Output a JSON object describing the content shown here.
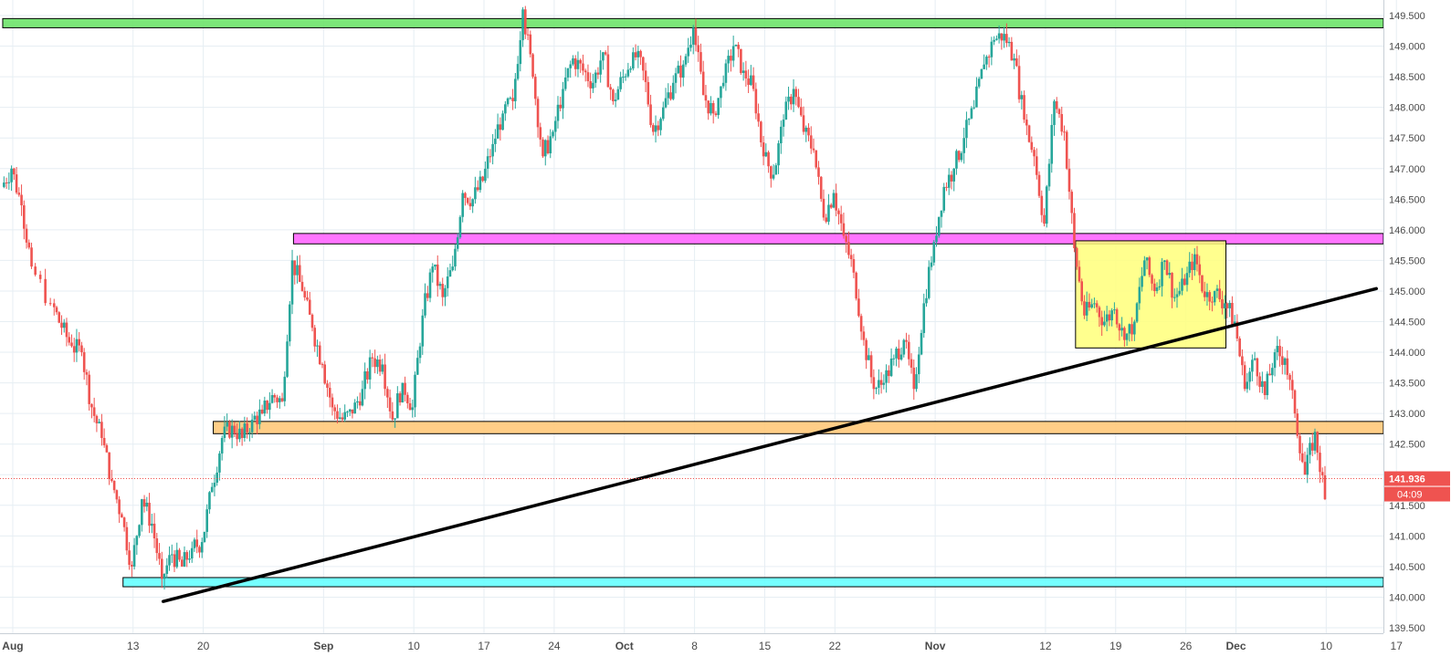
{
  "chart_data": {
    "type": "candlestick",
    "title": "",
    "xlabel": "",
    "ylabel": "",
    "ylim": [
      139.25,
      149.65
    ],
    "y_ticks": [
      "139.500",
      "140.000",
      "140.500",
      "141.000",
      "141.500",
      "142.000",
      "142.500",
      "143.000",
      "143.500",
      "144.000",
      "144.500",
      "145.000",
      "145.500",
      "146.000",
      "146.500",
      "147.000",
      "147.500",
      "148.000",
      "148.500",
      "149.000",
      "149.500"
    ],
    "x_ticks": [
      {
        "date": "2018-08-01",
        "label": "Aug"
      },
      {
        "date": "2018-08-13",
        "label": "13"
      },
      {
        "date": "2018-08-20",
        "label": "20"
      },
      {
        "date": "2018-09-01",
        "label": "Sep"
      },
      {
        "date": "2018-09-10",
        "label": "10"
      },
      {
        "date": "2018-09-17",
        "label": "17"
      },
      {
        "date": "2018-09-24",
        "label": "24"
      },
      {
        "date": "2018-10-01",
        "label": "Oct"
      },
      {
        "date": "2018-10-08",
        "label": "8"
      },
      {
        "date": "2018-10-15",
        "label": "15"
      },
      {
        "date": "2018-10-22",
        "label": "22"
      },
      {
        "date": "2018-11-01",
        "label": "Nov"
      },
      {
        "date": "2018-11-12",
        "label": "12"
      },
      {
        "date": "2018-11-19",
        "label": "19"
      },
      {
        "date": "2018-11-26",
        "label": "26"
      },
      {
        "date": "2018-12-01",
        "label": "Dec"
      },
      {
        "date": "2018-12-10",
        "label": "10"
      },
      {
        "date": "2018-12-17",
        "label": "17"
      }
    ],
    "price_path": [
      [
        "2018-07-31",
        146.7
      ],
      [
        "2018-08-01",
        147.0
      ],
      [
        "2018-08-02",
        146.4
      ],
      [
        "2018-08-03",
        145.4
      ],
      [
        "2018-08-05",
        144.8
      ],
      [
        "2018-08-06",
        144.4
      ],
      [
        "2018-08-07",
        144.1
      ],
      [
        "2018-08-08",
        144.0
      ],
      [
        "2018-08-09",
        143.1
      ],
      [
        "2018-08-10",
        142.6
      ],
      [
        "2018-08-11",
        141.9
      ],
      [
        "2018-08-12",
        141.3
      ],
      [
        "2018-08-13",
        140.5
      ],
      [
        "2018-08-14",
        141.6
      ],
      [
        "2018-08-15",
        141.2
      ],
      [
        "2018-08-16",
        140.3
      ],
      [
        "2018-08-17",
        140.7
      ],
      [
        "2018-08-18",
        140.5
      ],
      [
        "2018-08-19",
        140.8
      ],
      [
        "2018-08-20",
        140.9
      ],
      [
        "2018-08-21",
        141.8
      ],
      [
        "2018-08-22",
        142.6
      ],
      [
        "2018-08-23",
        142.8
      ],
      [
        "2018-08-24",
        142.6
      ],
      [
        "2018-08-25",
        142.9
      ],
      [
        "2018-08-26",
        143.0
      ],
      [
        "2018-08-27",
        143.3
      ],
      [
        "2018-08-28",
        143.2
      ],
      [
        "2018-08-29",
        145.5
      ],
      [
        "2018-08-30",
        145.0
      ],
      [
        "2018-08-31",
        144.4
      ],
      [
        "2018-09-01",
        143.8
      ],
      [
        "2018-09-02",
        143.1
      ],
      [
        "2018-09-03",
        142.9
      ],
      [
        "2018-09-04",
        143.0
      ],
      [
        "2018-09-05",
        143.4
      ],
      [
        "2018-09-06",
        143.9
      ],
      [
        "2018-09-07",
        143.8
      ],
      [
        "2018-09-08",
        142.9
      ],
      [
        "2018-09-09",
        143.5
      ],
      [
        "2018-09-10",
        143.1
      ],
      [
        "2018-09-11",
        144.6
      ],
      [
        "2018-09-12",
        145.4
      ],
      [
        "2018-09-13",
        144.9
      ],
      [
        "2018-09-14",
        145.4
      ],
      [
        "2018-09-15",
        146.6
      ],
      [
        "2018-09-16",
        146.5
      ],
      [
        "2018-09-17",
        146.8
      ],
      [
        "2018-09-18",
        147.4
      ],
      [
        "2018-09-19",
        147.9
      ],
      [
        "2018-09-20",
        148.1
      ],
      [
        "2018-09-21",
        149.6
      ],
      [
        "2018-09-22",
        148.5
      ],
      [
        "2018-09-23",
        147.2
      ],
      [
        "2018-09-24",
        147.6
      ],
      [
        "2018-09-25",
        148.3
      ],
      [
        "2018-09-26",
        148.8
      ],
      [
        "2018-09-27",
        148.6
      ],
      [
        "2018-09-28",
        148.4
      ],
      [
        "2018-09-29",
        148.9
      ],
      [
        "2018-09-30",
        148.1
      ],
      [
        "2018-10-01",
        148.5
      ],
      [
        "2018-10-02",
        148.9
      ],
      [
        "2018-10-03",
        148.6
      ],
      [
        "2018-10-04",
        147.6
      ],
      [
        "2018-10-05",
        148.0
      ],
      [
        "2018-10-06",
        148.4
      ],
      [
        "2018-10-07",
        148.7
      ],
      [
        "2018-10-08",
        149.3
      ],
      [
        "2018-10-09",
        148.2
      ],
      [
        "2018-10-10",
        147.9
      ],
      [
        "2018-10-11",
        148.4
      ],
      [
        "2018-10-12",
        149.0
      ],
      [
        "2018-10-13",
        148.6
      ],
      [
        "2018-10-14",
        148.3
      ],
      [
        "2018-10-15",
        147.2
      ],
      [
        "2018-10-16",
        146.9
      ],
      [
        "2018-10-17",
        147.8
      ],
      [
        "2018-10-18",
        148.3
      ],
      [
        "2018-10-19",
        147.6
      ],
      [
        "2018-10-20",
        147.3
      ],
      [
        "2018-10-21",
        146.2
      ],
      [
        "2018-10-22",
        146.6
      ],
      [
        "2018-10-23",
        145.9
      ],
      [
        "2018-10-24",
        145.3
      ],
      [
        "2018-10-25",
        144.2
      ],
      [
        "2018-10-26",
        143.4
      ],
      [
        "2018-10-27",
        143.5
      ],
      [
        "2018-10-28",
        143.9
      ],
      [
        "2018-10-29",
        144.2
      ],
      [
        "2018-10-30",
        143.4
      ],
      [
        "2018-10-31",
        144.8
      ],
      [
        "2018-11-01",
        145.8
      ],
      [
        "2018-11-02",
        146.7
      ],
      [
        "2018-11-03",
        147.0
      ],
      [
        "2018-11-04",
        147.5
      ],
      [
        "2018-11-05",
        148.0
      ],
      [
        "2018-11-06",
        148.7
      ],
      [
        "2018-11-07",
        149.1
      ],
      [
        "2018-11-08",
        149.2
      ],
      [
        "2018-11-09",
        148.8
      ],
      [
        "2018-11-10",
        147.8
      ],
      [
        "2018-11-11",
        147.2
      ],
      [
        "2018-11-12",
        146.1
      ],
      [
        "2018-11-13",
        148.1
      ],
      [
        "2018-11-14",
        147.6
      ],
      [
        "2018-11-15",
        145.7
      ],
      [
        "2018-11-16",
        144.6
      ],
      [
        "2018-11-17",
        144.8
      ],
      [
        "2018-11-18",
        144.5
      ],
      [
        "2018-11-19",
        144.7
      ],
      [
        "2018-11-20",
        144.2
      ],
      [
        "2018-11-21",
        144.5
      ],
      [
        "2018-11-22",
        145.5
      ],
      [
        "2018-11-23",
        145.0
      ],
      [
        "2018-11-24",
        145.5
      ],
      [
        "2018-11-25",
        144.9
      ],
      [
        "2018-11-26",
        145.1
      ],
      [
        "2018-11-27",
        145.6
      ],
      [
        "2018-11-28",
        144.9
      ],
      [
        "2018-11-29",
        145.0
      ],
      [
        "2018-11-30",
        144.8
      ],
      [
        "2018-12-01",
        144.5
      ],
      [
        "2018-12-02",
        143.4
      ],
      [
        "2018-12-03",
        143.9
      ],
      [
        "2018-12-04",
        143.3
      ],
      [
        "2018-12-05",
        144.0
      ],
      [
        "2018-12-06",
        143.9
      ],
      [
        "2018-12-07",
        143.0
      ],
      [
        "2018-12-08",
        142.0
      ],
      [
        "2018-12-09",
        142.7
      ],
      [
        "2018-12-10",
        141.6
      ]
    ],
    "current_price": {
      "value": 141.936,
      "label": "141.936",
      "countdown": "04:09",
      "color": "#ef5350"
    },
    "zones": [
      {
        "name": "green",
        "start": "2018-07-31",
        "end": "2018-12-18",
        "high": 149.45,
        "low": 149.3,
        "color": "#6ee36a"
      },
      {
        "name": "magenta",
        "start": "2018-08-29",
        "end": "2018-12-18",
        "high": 145.94,
        "low": 145.77,
        "color": "#ff66ff"
      },
      {
        "name": "orange",
        "start": "2018-08-21",
        "end": "2018-12-18",
        "high": 142.87,
        "low": 142.67,
        "color": "#ffc97a"
      },
      {
        "name": "cyan",
        "start": "2018-08-12",
        "end": "2018-12-17",
        "high": 140.32,
        "low": 140.17,
        "color": "#66ffff"
      },
      {
        "name": "yellow",
        "start": "2018-11-15",
        "end": "2018-11-30",
        "high": 145.82,
        "low": 144.07,
        "color": "#ffff7a"
      }
    ],
    "trendline": {
      "start": [
        "2018-08-16",
        139.93
      ],
      "end": [
        "2018-12-15",
        145.04
      ],
      "color": "#000000"
    },
    "colors": {
      "up": "#26a69a",
      "down": "#ef5350",
      "grid": "#e6eef3",
      "axis_text": "#4a4a4a"
    },
    "grid": true
  }
}
